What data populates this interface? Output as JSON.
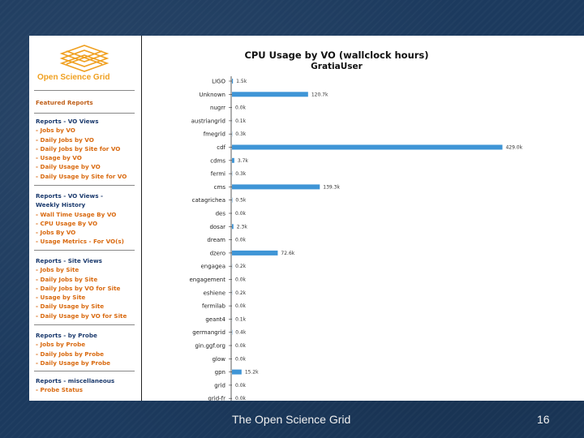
{
  "sidebar": {
    "logo_text": "Open Science Grid",
    "featured_reports": "Featured Reports",
    "sections": [
      {
        "title": "Reports - VO Views",
        "links": [
          "- Jobs by VO",
          "- Daily Jobs by VO",
          "- Daily Jobs by Site for VO",
          "- Usage by VO",
          "- Daily Usage by VO",
          "- Daily Usage by Site for VO"
        ]
      },
      {
        "title": "Reports - VO Views -",
        "title2": "Weekly History",
        "links": [
          "- Wall Time Usage By VO",
          "- CPU Usage By VO",
          "- Jobs By VO",
          "- Usage Metrics - For VO(s)"
        ]
      },
      {
        "title": "Reports - Site Views",
        "links": [
          "- Jobs by Site",
          "- Daily Jobs by Site",
          "- Daily Jobs by VO for Site",
          "- Usage by Site",
          "- Daily Usage by Site",
          "- Daily Usage by VO for Site"
        ]
      },
      {
        "title": "Reports - by Probe",
        "links": [
          "- Jobs by Probe",
          "- Daily Jobs by Probe",
          "- Daily Usage by Probe"
        ]
      },
      {
        "title": "Reports - miscellaneous",
        "links": [
          "- Probe Status"
        ]
      }
    ]
  },
  "chart_data": {
    "type": "bar",
    "orientation": "horizontal",
    "title": "CPU Usage by VO (wallclock hours)",
    "subtitle": "GratiaUser",
    "categories": [
      "LIGO",
      "Unknown",
      "nugrr",
      "austriangrid",
      "fmegrid",
      "cdf",
      "cdms",
      "fermi",
      "cms",
      "catagrichea",
      "des",
      "dosar",
      "dream",
      "dzero",
      "engagea",
      "engagement",
      "eshiene",
      "fermilab",
      "geant4",
      "germangrid",
      "gin.ggf.org",
      "glow",
      "gpn",
      "grid",
      "grid-fr"
    ],
    "values": [
      1.5,
      120.7,
      0.0,
      0.1,
      0.3,
      429.0,
      3.7,
      0.3,
      139.3,
      0.5,
      0.0,
      2.3,
      0.0,
      72.6,
      0.2,
      0.0,
      0.2,
      0.0,
      0.1,
      0.4,
      0.0,
      0.0,
      15.2,
      0.0,
      0.0
    ],
    "value_labels": [
      "1.5k",
      "120.7k",
      "0.0k",
      "0.1k",
      "0.3k",
      "429.0k",
      "3.7k",
      "0.3k",
      "139.3k",
      "0.5k",
      "0.0k",
      "2.3k",
      "0.0k",
      "72.6k",
      "0.2k",
      "0.0k",
      "0.2k",
      "0.0k",
      "0.1k",
      "0.4k",
      "0.0k",
      "0.0k",
      "15.2k",
      "0.0k",
      "0.0k"
    ],
    "units": "thousand wallclock hours",
    "xlim": [
      0,
      440
    ],
    "bar_color": "#3f95d6"
  },
  "footer": {
    "text": "The Open Science Grid",
    "slide_number": "16"
  }
}
